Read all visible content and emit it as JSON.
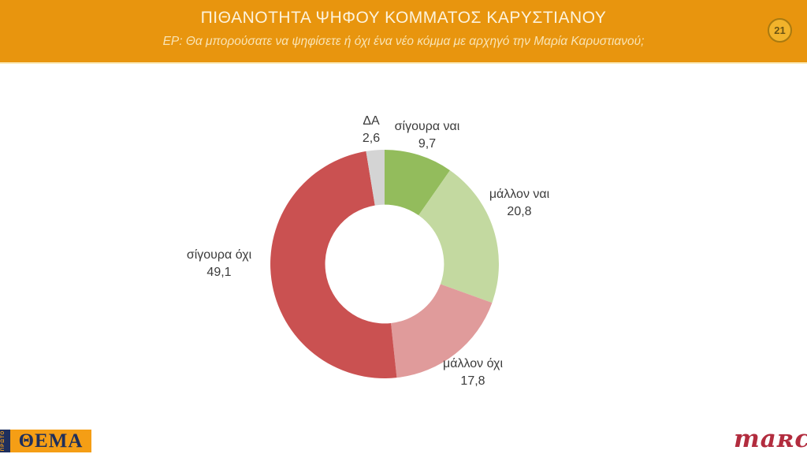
{
  "header": {
    "title": "ΠΙΘΑΝΟΤΗΤΑ ΨΗΦΟΥ ΚΟΜΜΑΤΟΣ ΚΑΡΥΣΤΙΑΝΟΥ",
    "subtitle": "ΕΡ: Θα μπορούσατε να ψηφίσετε ή όχι ένα νέο κόμμα με αρχηγό την Μαρία Καρυστιανού;",
    "page_number": "21",
    "background_color": "#E8950E",
    "badge_fill": "#F2B32B",
    "badge_border": "#A97A10"
  },
  "chart_data": {
    "type": "pie",
    "subtype": "donut",
    "title": "ΠΙΘΑΝΟΤΗΤΑ ΨΗΦΟΥ ΚΟΜΜΑΤΟΣ ΚΑΡΥΣΤΙΑΝΟΥ",
    "unit": "percent",
    "decimal_style": "comma",
    "start_angle_deg": 0,
    "direction": "clockwise",
    "inner_radius_ratio": 0.52,
    "segments": [
      {
        "label": "σίγουρα ναι",
        "value": 9.7,
        "display": "9,7",
        "color": "#93BC5C"
      },
      {
        "label": "μάλλον ναι",
        "value": 20.8,
        "display": "20,8",
        "color": "#C3D9A0"
      },
      {
        "label": "μάλλον όχι",
        "value": 17.8,
        "display": "17,8",
        "color": "#E09B9B"
      },
      {
        "label": "σίγουρα όχι",
        "value": 49.1,
        "display": "49,1",
        "color": "#CA5151"
      },
      {
        "label": "ΔΑ",
        "value": 2.6,
        "display": "2,6",
        "color": "#D4D4D4"
      }
    ]
  },
  "footer": {
    "thema": {
      "vertical_text": "ΠΡΩΤΟ",
      "text": "ΘΕΜΑ",
      "bg": "#F59E15",
      "fg": "#1F2F5C"
    },
    "marc": {
      "text": "maʀc",
      "color": "#B22C3E"
    }
  }
}
